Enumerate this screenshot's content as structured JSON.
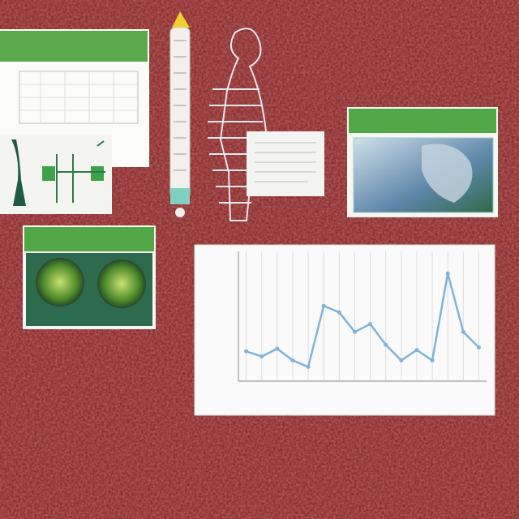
{
  "chart_data": {
    "type": "line",
    "categories": [
      null,
      null,
      null,
      null,
      null,
      null,
      null,
      null,
      null,
      null,
      null,
      null,
      null,
      null,
      null,
      null
    ],
    "values": [
      23,
      19,
      25,
      16,
      11,
      58,
      53,
      38,
      44,
      28,
      16,
      24,
      16,
      83,
      38,
      26
    ],
    "color": "#7fb3d9",
    "ylim": [
      0,
      100
    ],
    "grid": true
  }
}
